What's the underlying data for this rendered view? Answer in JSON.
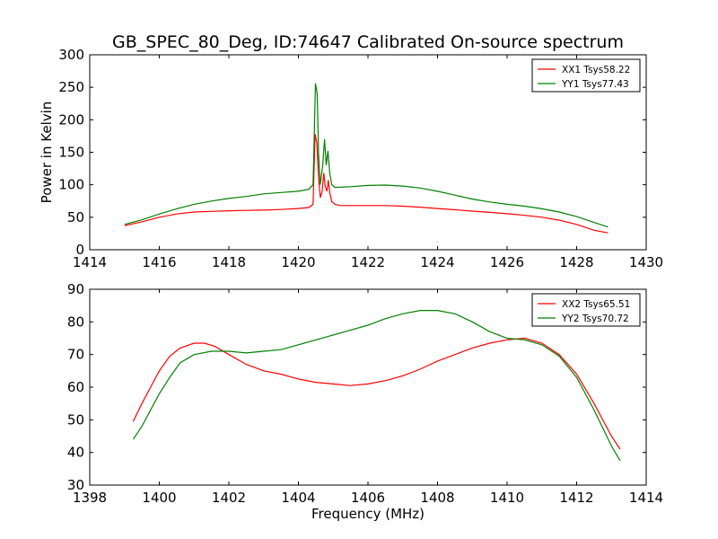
{
  "figure": {
    "title": "GB_SPEC_80_Deg, ID:74647 Calibrated On-source spectrum"
  },
  "chart_data": [
    {
      "type": "line",
      "ylabel": "Power in Kelvin",
      "xlabel": "",
      "xlim": [
        1414,
        1430
      ],
      "ylim": [
        0,
        300
      ],
      "xticks": [
        1414,
        1416,
        1418,
        1420,
        1422,
        1424,
        1426,
        1428,
        1430
      ],
      "yticks": [
        0,
        50,
        100,
        150,
        200,
        250,
        300
      ],
      "legend_position": "top-right",
      "series": [
        {
          "name": "XX1 Tsys58.22",
          "color": "#ff0000",
          "points": [
            [
              1415.0,
              37
            ],
            [
              1415.5,
              43
            ],
            [
              1416.0,
              50
            ],
            [
              1416.5,
              55
            ],
            [
              1417.0,
              58
            ],
            [
              1417.5,
              59
            ],
            [
              1418.0,
              60
            ],
            [
              1418.5,
              60.5
            ],
            [
              1419.0,
              61
            ],
            [
              1419.5,
              62
            ],
            [
              1420.0,
              63.5
            ],
            [
              1420.3,
              65
            ],
            [
              1420.42,
              70
            ],
            [
              1420.48,
              178
            ],
            [
              1420.53,
              165
            ],
            [
              1420.58,
              110
            ],
            [
              1420.63,
              80
            ],
            [
              1420.68,
              90
            ],
            [
              1420.73,
              118
            ],
            [
              1420.77,
              98
            ],
            [
              1420.82,
              90
            ],
            [
              1420.86,
              107
            ],
            [
              1420.9,
              88
            ],
            [
              1420.96,
              74
            ],
            [
              1421.05,
              70
            ],
            [
              1421.2,
              68
            ],
            [
              1421.6,
              68
            ],
            [
              1422.0,
              68
            ],
            [
              1422.5,
              68
            ],
            [
              1423.0,
              67
            ],
            [
              1423.5,
              65.5
            ],
            [
              1424.0,
              63.5
            ],
            [
              1424.5,
              61.5
            ],
            [
              1425.0,
              59.5
            ],
            [
              1425.5,
              57.5
            ],
            [
              1426.0,
              55.5
            ],
            [
              1426.5,
              53
            ],
            [
              1427.0,
              50
            ],
            [
              1427.5,
              45.5
            ],
            [
              1428.0,
              39
            ],
            [
              1428.5,
              30
            ],
            [
              1428.9,
              26
            ]
          ]
        },
        {
          "name": "YY1 Tsys77.43",
          "color": "#008000",
          "points": [
            [
              1415.0,
              39
            ],
            [
              1415.5,
              46
            ],
            [
              1416.0,
              55
            ],
            [
              1416.5,
              63
            ],
            [
              1417.0,
              70
            ],
            [
              1417.5,
              75
            ],
            [
              1418.0,
              79
            ],
            [
              1418.5,
              82
            ],
            [
              1419.0,
              86
            ],
            [
              1419.5,
              88
            ],
            [
              1420.0,
              90
            ],
            [
              1420.3,
              93
            ],
            [
              1420.42,
              100
            ],
            [
              1420.49,
              256
            ],
            [
              1420.54,
              240
            ],
            [
              1420.58,
              145
            ],
            [
              1420.63,
              100
            ],
            [
              1420.7,
              130
            ],
            [
              1420.75,
              170
            ],
            [
              1420.8,
              130
            ],
            [
              1420.85,
              152
            ],
            [
              1420.9,
              118
            ],
            [
              1420.96,
              100
            ],
            [
              1421.05,
              96
            ],
            [
              1421.5,
              97
            ],
            [
              1422.0,
              99
            ],
            [
              1422.5,
              99.5
            ],
            [
              1423.0,
              98
            ],
            [
              1423.5,
              95
            ],
            [
              1424.0,
              90
            ],
            [
              1424.5,
              84
            ],
            [
              1425.0,
              78
            ],
            [
              1425.5,
              73.5
            ],
            [
              1426.0,
              70
            ],
            [
              1426.5,
              67
            ],
            [
              1427.0,
              63
            ],
            [
              1427.5,
              58
            ],
            [
              1428.0,
              51
            ],
            [
              1428.5,
              42
            ],
            [
              1428.9,
              35
            ]
          ]
        }
      ]
    },
    {
      "type": "line",
      "ylabel": "",
      "xlabel": "Frequency (MHz)",
      "xlim": [
        1398,
        1414
      ],
      "ylim": [
        30,
        90
      ],
      "xticks": [
        1398,
        1400,
        1402,
        1404,
        1406,
        1408,
        1410,
        1412,
        1414
      ],
      "yticks": [
        30,
        40,
        50,
        60,
        70,
        80,
        90
      ],
      "legend_position": "top-right",
      "series": [
        {
          "name": "XX2 Tsys65.51",
          "color": "#ff0000",
          "points": [
            [
              1399.25,
              49.5
            ],
            [
              1399.5,
              55
            ],
            [
              1399.8,
              61
            ],
            [
              1400.0,
              65
            ],
            [
              1400.3,
              69.5
            ],
            [
              1400.6,
              72
            ],
            [
              1401.0,
              73.5
            ],
            [
              1401.3,
              73.5
            ],
            [
              1401.6,
              72.5
            ],
            [
              1402.0,
              70
            ],
            [
              1402.5,
              67
            ],
            [
              1403.0,
              65
            ],
            [
              1403.5,
              64
            ],
            [
              1404.0,
              62.5
            ],
            [
              1404.5,
              61.5
            ],
            [
              1405.0,
              61
            ],
            [
              1405.5,
              60.5
            ],
            [
              1406.0,
              61
            ],
            [
              1406.5,
              62
            ],
            [
              1407.0,
              63.5
            ],
            [
              1407.5,
              65.5
            ],
            [
              1408.0,
              68
            ],
            [
              1408.5,
              70
            ],
            [
              1409.0,
              72
            ],
            [
              1409.5,
              73.5
            ],
            [
              1410.0,
              74.5
            ],
            [
              1410.5,
              75
            ],
            [
              1411.0,
              73.5
            ],
            [
              1411.5,
              70
            ],
            [
              1412.0,
              64
            ],
            [
              1412.5,
              55
            ],
            [
              1413.0,
              45
            ],
            [
              1413.25,
              41
            ]
          ]
        },
        {
          "name": "YY2 Tsys70.72",
          "color": "#008000",
          "points": [
            [
              1399.25,
              44
            ],
            [
              1399.5,
              48
            ],
            [
              1399.8,
              54
            ],
            [
              1400.0,
              58
            ],
            [
              1400.3,
              63
            ],
            [
              1400.6,
              67.5
            ],
            [
              1401.0,
              70
            ],
            [
              1401.5,
              71
            ],
            [
              1402.0,
              71
            ],
            [
              1402.5,
              70.5
            ],
            [
              1403.0,
              71
            ],
            [
              1403.5,
              71.5
            ],
            [
              1404.0,
              73
            ],
            [
              1404.5,
              74.5
            ],
            [
              1405.0,
              76
            ],
            [
              1405.5,
              77.5
            ],
            [
              1406.0,
              79
            ],
            [
              1406.5,
              81
            ],
            [
              1407.0,
              82.5
            ],
            [
              1407.5,
              83.5
            ],
            [
              1408.0,
              83.5
            ],
            [
              1408.5,
              82.5
            ],
            [
              1409.0,
              80
            ],
            [
              1409.5,
              77
            ],
            [
              1410.0,
              75
            ],
            [
              1410.5,
              74.5
            ],
            [
              1411.0,
              73
            ],
            [
              1411.5,
              69.5
            ],
            [
              1412.0,
              63
            ],
            [
              1412.5,
              53
            ],
            [
              1413.0,
              42
            ],
            [
              1413.25,
              37.5
            ]
          ]
        }
      ]
    }
  ]
}
